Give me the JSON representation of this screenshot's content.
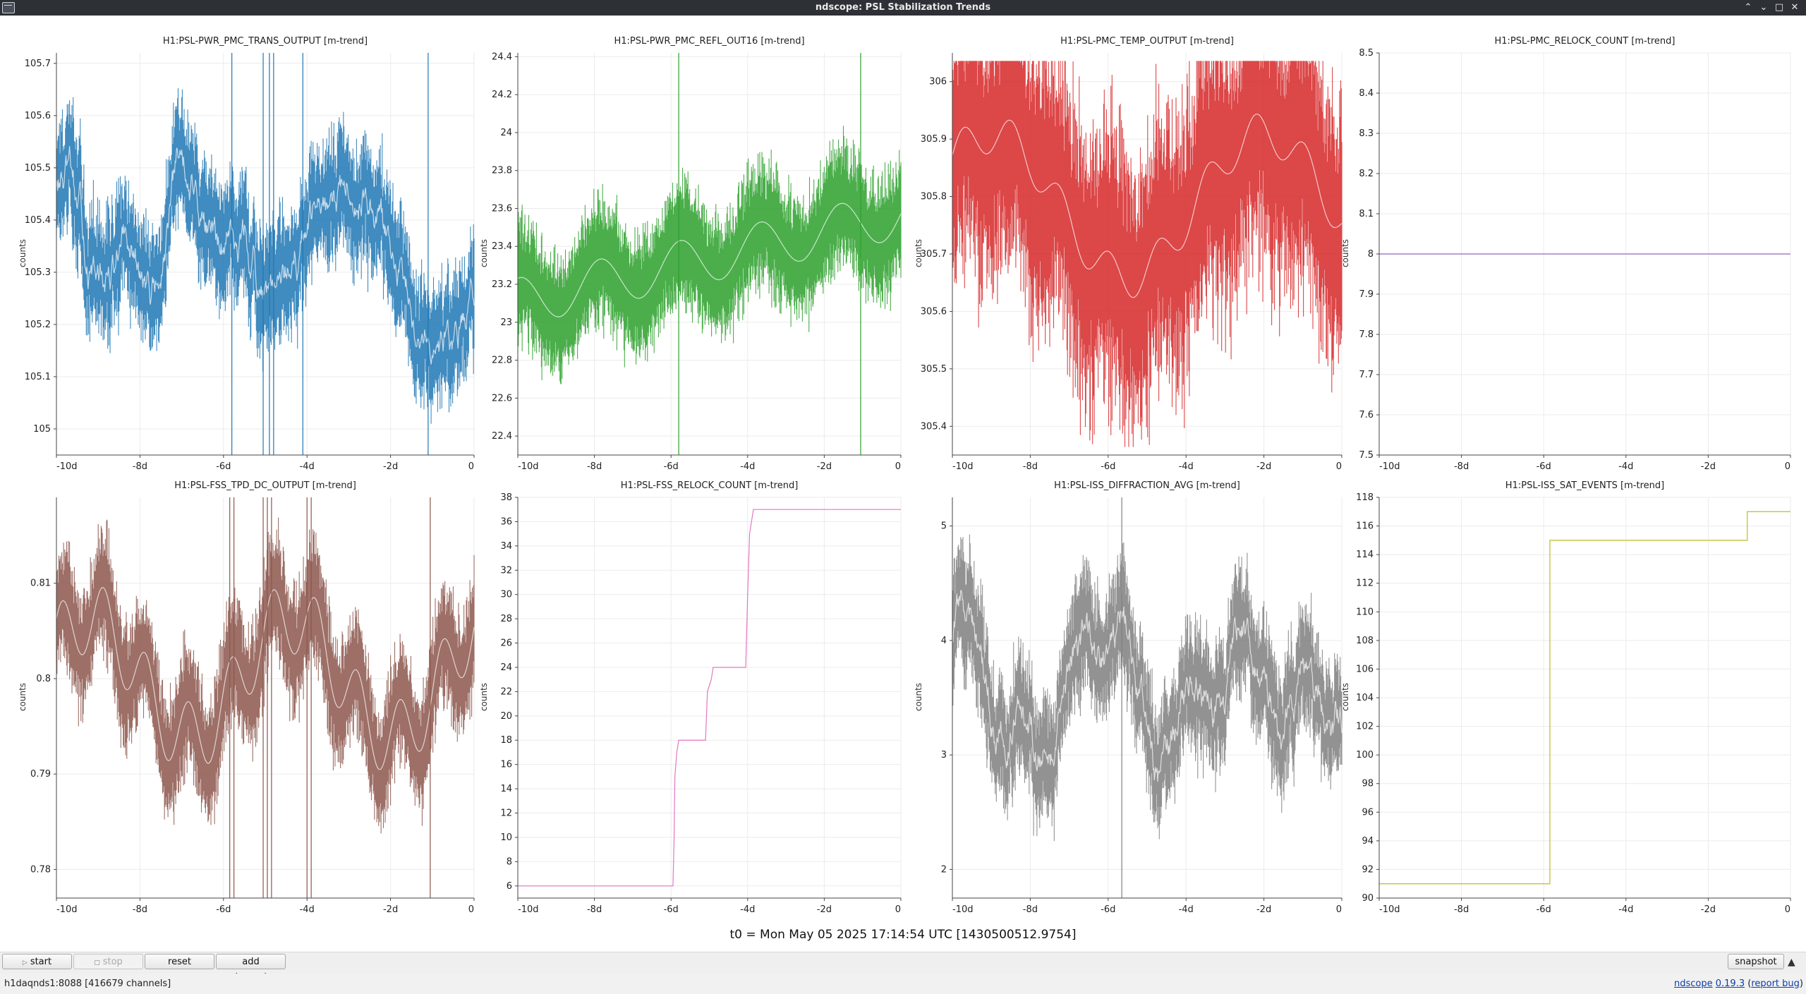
{
  "window": {
    "title": "ndscope: PSL Stabilization Trends",
    "buttons": [
      "⌃",
      "⌄",
      "□",
      "✕"
    ]
  },
  "plots": [
    {
      "title": "H1:PSL-PWR_PMC_TRANS_OUTPUT [m-trend]",
      "ylabel": "counts",
      "color": "#1f77b4",
      "kind": "noise",
      "ylim": [
        104.95,
        105.72
      ],
      "yticks": [
        105,
        105.1,
        105.2,
        105.3,
        105.4,
        105.5,
        105.6,
        105.7
      ],
      "xticks": [
        "-10d",
        "-8d",
        "-6d",
        "-4d",
        "-2d",
        "0"
      ],
      "spikes": [
        -5.8,
        -5.05,
        -4.9,
        -4.8,
        -4.1,
        -1.1
      ]
    },
    {
      "title": "H1:PSL-PWR_PMC_REFL_OUT16 [m-trend]",
      "ylabel": "counts",
      "color": "#2ca02c",
      "kind": "noise",
      "ylim": [
        22.3,
        24.42
      ],
      "yticks": [
        22.4,
        22.6,
        22.8,
        23,
        23.2,
        23.4,
        23.6,
        23.8,
        24,
        24.2,
        24.4
      ],
      "xticks": [
        "-10d",
        "-8d",
        "-6d",
        "-4d",
        "-2d",
        "0"
      ],
      "spikes": [
        -5.8,
        -1.05
      ]
    },
    {
      "title": "H1:PSL-PMC_TEMP_OUTPUT [m-trend]",
      "ylabel": "counts",
      "color": "#d62728",
      "kind": "noise",
      "ylim": [
        305.35,
        306.05
      ],
      "yticks": [
        305.4,
        305.5,
        305.6,
        305.7,
        305.8,
        305.9,
        306
      ],
      "xticks": [
        "-10d",
        "-8d",
        "-6d",
        "-4d",
        "-2d",
        "0"
      ],
      "spikes": []
    },
    {
      "title": "H1:PSL-PMC_RELOCK_COUNT [m-trend]",
      "ylabel": "counts",
      "color": "#9467bd",
      "kind": "step",
      "ylim": [
        7.5,
        8.5
      ],
      "yticks": [
        7.5,
        7.6,
        7.7,
        7.8,
        7.9,
        8,
        8.1,
        8.2,
        8.3,
        8.4,
        8.5
      ],
      "xticks": [
        "-10d",
        "-8d",
        "-6d",
        "-4d",
        "-2d",
        "0"
      ],
      "steps": [
        [
          -10,
          8
        ],
        [
          0,
          8
        ]
      ]
    },
    {
      "title": "H1:PSL-FSS_TPD_DC_OUTPUT [m-trend]",
      "ylabel": "counts",
      "color": "#8c564b",
      "kind": "noise",
      "ylim": [
        0.777,
        0.819
      ],
      "yticks": [
        0.78,
        0.79,
        0.8,
        0.81
      ],
      "xticks": [
        "-10d",
        "-8d",
        "-6d",
        "-4d",
        "-2d",
        "0"
      ],
      "spikes": [
        -5.85,
        -5.75,
        -5.05,
        -4.95,
        -4.85,
        -4.0,
        -3.9,
        -1.05
      ]
    },
    {
      "title": "H1:PSL-FSS_RELOCK_COUNT [m-trend]",
      "ylabel": "counts",
      "color": "#e377c2",
      "kind": "step",
      "ylim": [
        5,
        38
      ],
      "yticks": [
        6,
        8,
        10,
        12,
        14,
        16,
        18,
        20,
        22,
        24,
        26,
        28,
        30,
        32,
        34,
        36,
        38
      ],
      "xticks": [
        "-10d",
        "-8d",
        "-6d",
        "-4d",
        "-2d",
        "0"
      ],
      "steps": [
        [
          -10,
          6
        ],
        [
          -5.95,
          6
        ],
        [
          -5.92,
          10
        ],
        [
          -5.9,
          15
        ],
        [
          -5.85,
          17
        ],
        [
          -5.8,
          18
        ],
        [
          -5.1,
          18
        ],
        [
          -5.05,
          22
        ],
        [
          -4.95,
          23
        ],
        [
          -4.9,
          24
        ],
        [
          -4.05,
          24
        ],
        [
          -4.0,
          30
        ],
        [
          -3.95,
          35
        ],
        [
          -3.85,
          37
        ],
        [
          0,
          37
        ]
      ]
    },
    {
      "title": "H1:PSL-ISS_DIFFRACTION_AVG [m-trend]",
      "ylabel": "counts",
      "color": "#7f7f7f",
      "kind": "noise",
      "ylim": [
        1.75,
        5.25
      ],
      "yticks": [
        2,
        3,
        4,
        5
      ],
      "xticks": [
        "-10d",
        "-8d",
        "-6d",
        "-4d",
        "-2d",
        "0"
      ],
      "spikes": [
        -5.65
      ]
    },
    {
      "title": "H1:PSL-ISS_SAT_EVENTS [m-trend]",
      "ylabel": "counts",
      "color": "#bcbd22",
      "kind": "step",
      "ylim": [
        90,
        118
      ],
      "yticks": [
        90,
        92,
        94,
        96,
        98,
        100,
        102,
        104,
        106,
        108,
        110,
        112,
        114,
        116,
        118
      ],
      "xticks": [
        "-10d",
        "-8d",
        "-6d",
        "-4d",
        "-2d",
        "0"
      ],
      "steps": [
        [
          -10,
          91
        ],
        [
          -5.85,
          91
        ],
        [
          -5.85,
          115
        ],
        [
          -1.05,
          115
        ],
        [
          -1.05,
          117
        ],
        [
          0,
          117
        ]
      ]
    }
  ],
  "t0": "t0 = Mon May 05 2025 17:14:54 UTC [1430500512.9754]",
  "toolbar": {
    "start_online": "start online",
    "stop_online": "stop online",
    "reset": "reset",
    "add_channels": "add channels",
    "snapshot": "snapshot"
  },
  "status": {
    "server": "h1daqnds1:8088  [416679 channels]",
    "app_name": "ndscope",
    "version": "0.19.3",
    "report_bug": "report bug"
  }
}
